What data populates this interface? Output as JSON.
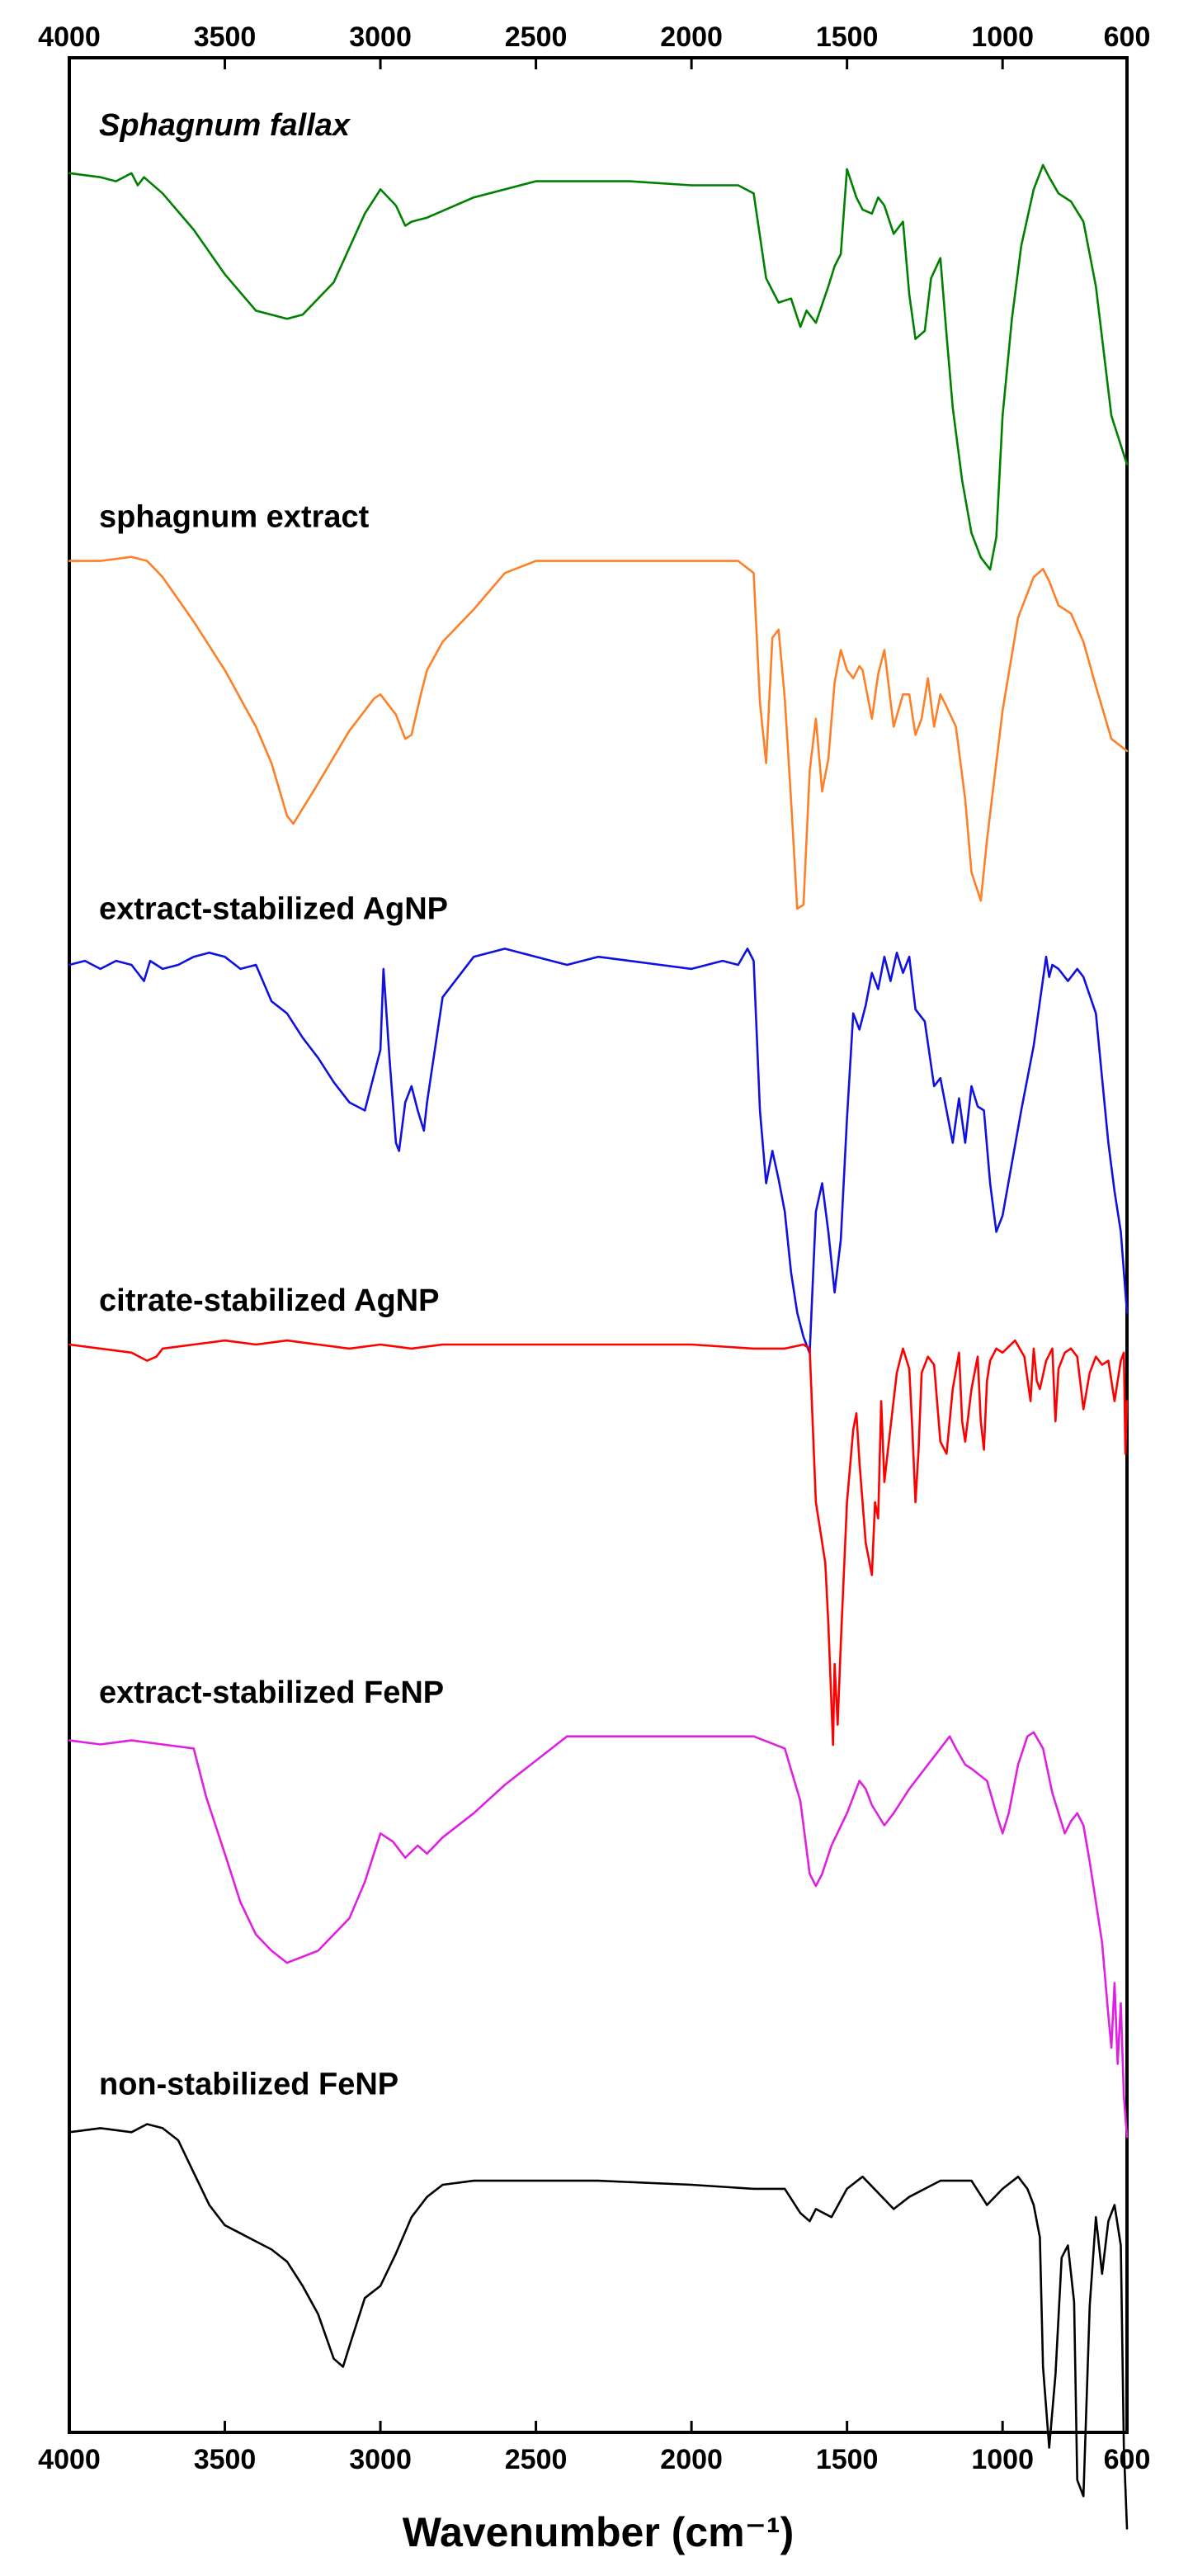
{
  "chart_data": {
    "type": "line",
    "title": "",
    "xlabel": "Wavenumber (cm⁻¹)",
    "ylabel": "",
    "xlim": [
      4000,
      600
    ],
    "x_reversed": true,
    "x_ticks": [
      4000,
      3500,
      3000,
      2500,
      2000,
      1500,
      1000,
      600
    ],
    "x_tick_labels": [
      "4000",
      "3500",
      "3000",
      "2500",
      "2000",
      "1500",
      "1000",
      "600"
    ],
    "ticks_on_top_and_bottom": true,
    "y_axis_ticks": false,
    "grid": false,
    "legend": "none (series labelled inline above each trace)",
    "series_layout": "vertically offset stacked spectra",
    "ylim": [
      -1,
      0
    ],
    "series": [
      {
        "name": "Sphagnum fallax",
        "italic": true,
        "color": "#008000",
        "offset": 0,
        "x": [
          4000,
          3900,
          3850,
          3800,
          3780,
          3760,
          3700,
          3600,
          3500,
          3400,
          3300,
          3250,
          3150,
          3050,
          3000,
          2950,
          2920,
          2900,
          2850,
          2700,
          2500,
          2200,
          2000,
          1850,
          1800,
          1760,
          1720,
          1680,
          1650,
          1630,
          1600,
          1560,
          1540,
          1520,
          1500,
          1470,
          1450,
          1420,
          1400,
          1380,
          1350,
          1320,
          1300,
          1280,
          1250,
          1230,
          1200,
          1180,
          1160,
          1130,
          1100,
          1070,
          1040,
          1020,
          1000,
          970,
          940,
          900,
          870,
          850,
          820,
          780,
          740,
          700,
          650,
          600
        ],
        "y": [
          0.98,
          0.97,
          0.96,
          0.98,
          0.95,
          0.97,
          0.93,
          0.84,
          0.73,
          0.64,
          0.62,
          0.63,
          0.71,
          0.88,
          0.94,
          0.9,
          0.85,
          0.86,
          0.87,
          0.92,
          0.96,
          0.96,
          0.95,
          0.95,
          0.93,
          0.72,
          0.66,
          0.67,
          0.6,
          0.64,
          0.61,
          0.7,
          0.75,
          0.78,
          0.99,
          0.92,
          0.89,
          0.88,
          0.92,
          0.9,
          0.83,
          0.86,
          0.68,
          0.57,
          0.59,
          0.72,
          0.77,
          0.58,
          0.4,
          0.22,
          0.09,
          0.03,
          0.0,
          0.08,
          0.38,
          0.62,
          0.8,
          0.94,
          1.0,
          0.97,
          0.93,
          0.91,
          0.86,
          0.7,
          0.38,
          0.26
        ]
      },
      {
        "name": "sphagnum extract",
        "italic": false,
        "color": "#ff7f27",
        "offset": 0.165,
        "x": [
          4000,
          3900,
          3800,
          3750,
          3700,
          3600,
          3500,
          3400,
          3350,
          3300,
          3280,
          3200,
          3100,
          3020,
          3000,
          2950,
          2920,
          2900,
          2870,
          2850,
          2800,
          2700,
          2600,
          2500,
          2200,
          2000,
          1850,
          1800,
          1780,
          1760,
          1740,
          1720,
          1700,
          1680,
          1660,
          1640,
          1620,
          1600,
          1580,
          1560,
          1540,
          1520,
          1500,
          1480,
          1460,
          1450,
          1420,
          1400,
          1380,
          1350,
          1320,
          1300,
          1280,
          1260,
          1240,
          1220,
          1200,
          1180,
          1150,
          1120,
          1100,
          1070,
          1050,
          1000,
          950,
          900,
          870,
          850,
          820,
          780,
          740,
          700,
          650,
          600
        ],
        "y": [
          0.99,
          0.99,
          1.0,
          0.99,
          0.95,
          0.84,
          0.72,
          0.58,
          0.49,
          0.36,
          0.34,
          0.44,
          0.57,
          0.65,
          0.66,
          0.61,
          0.55,
          0.56,
          0.66,
          0.72,
          0.79,
          0.87,
          0.96,
          0.99,
          0.99,
          0.99,
          0.99,
          0.96,
          0.64,
          0.49,
          0.8,
          0.82,
          0.65,
          0.4,
          0.13,
          0.14,
          0.47,
          0.6,
          0.42,
          0.5,
          0.69,
          0.77,
          0.72,
          0.7,
          0.73,
          0.72,
          0.6,
          0.71,
          0.77,
          0.58,
          0.66,
          0.66,
          0.56,
          0.6,
          0.7,
          0.58,
          0.66,
          0.63,
          0.58,
          0.4,
          0.22,
          0.15,
          0.3,
          0.62,
          0.85,
          0.95,
          0.97,
          0.94,
          0.88,
          0.86,
          0.79,
          0.68,
          0.55,
          0.52
        ]
      },
      {
        "name": "extract-stabilized AgNP",
        "italic": false,
        "color": "#1010e0",
        "offset": 0.33,
        "x": [
          4000,
          3950,
          3900,
          3850,
          3800,
          3760,
          3740,
          3700,
          3650,
          3600,
          3550,
          3500,
          3450,
          3400,
          3350,
          3300,
          3250,
          3200,
          3150,
          3100,
          3050,
          3000,
          2990,
          2970,
          2950,
          2940,
          2920,
          2900,
          2880,
          2860,
          2850,
          2800,
          2700,
          2600,
          2500,
          2400,
          2300,
          2200,
          2100,
          2000,
          1900,
          1850,
          1820,
          1800,
          1780,
          1760,
          1740,
          1720,
          1700,
          1680,
          1660,
          1640,
          1620,
          1600,
          1580,
          1560,
          1540,
          1520,
          1500,
          1480,
          1460,
          1440,
          1420,
          1400,
          1380,
          1360,
          1340,
          1320,
          1300,
          1280,
          1250,
          1220,
          1200,
          1180,
          1160,
          1140,
          1120,
          1100,
          1080,
          1060,
          1040,
          1020,
          1000,
          970,
          940,
          900,
          860,
          850,
          840,
          820,
          790,
          760,
          740,
          700,
          680,
          660,
          640,
          620,
          600
        ],
        "y": [
          0.96,
          0.97,
          0.95,
          0.97,
          0.96,
          0.92,
          0.97,
          0.95,
          0.96,
          0.98,
          0.99,
          0.98,
          0.95,
          0.96,
          0.87,
          0.84,
          0.78,
          0.73,
          0.67,
          0.62,
          0.6,
          0.75,
          0.95,
          0.72,
          0.52,
          0.5,
          0.62,
          0.66,
          0.6,
          0.55,
          0.62,
          0.88,
          0.98,
          1.0,
          0.98,
          0.96,
          0.98,
          0.97,
          0.96,
          0.95,
          0.97,
          0.96,
          1.0,
          0.97,
          0.6,
          0.42,
          0.5,
          0.43,
          0.35,
          0.2,
          0.1,
          0.04,
          0.0,
          0.35,
          0.42,
          0.3,
          0.15,
          0.28,
          0.58,
          0.84,
          0.8,
          0.86,
          0.94,
          0.9,
          0.98,
          0.92,
          0.99,
          0.94,
          0.98,
          0.85,
          0.82,
          0.66,
          0.68,
          0.6,
          0.52,
          0.63,
          0.52,
          0.66,
          0.61,
          0.6,
          0.42,
          0.3,
          0.34,
          0.47,
          0.6,
          0.76,
          0.98,
          0.93,
          0.96,
          0.95,
          0.92,
          0.95,
          0.93,
          0.84,
          0.68,
          0.52,
          0.4,
          0.3,
          0.1
        ]
      },
      {
        "name": "citrate-stabilized AgNP",
        "italic": false,
        "color": "#ff0000",
        "offset": 0.495,
        "x": [
          4000,
          3900,
          3800,
          3750,
          3720,
          3700,
          3600,
          3500,
          3400,
          3300,
          3200,
          3100,
          3000,
          2900,
          2800,
          2600,
          2400,
          2200,
          2000,
          1800,
          1700,
          1640,
          1620,
          1600,
          1580,
          1570,
          1560,
          1550,
          1545,
          1540,
          1530,
          1520,
          1500,
          1480,
          1470,
          1460,
          1440,
          1420,
          1410,
          1400,
          1390,
          1380,
          1370,
          1340,
          1320,
          1300,
          1290,
          1280,
          1270,
          1260,
          1240,
          1220,
          1200,
          1180,
          1160,
          1140,
          1130,
          1120,
          1100,
          1080,
          1070,
          1060,
          1050,
          1040,
          1020,
          1000,
          960,
          930,
          910,
          900,
          890,
          880,
          860,
          840,
          830,
          820,
          800,
          780,
          760,
          740,
          720,
          700,
          680,
          660,
          640,
          620,
          610,
          605,
          600
        ],
        "y": [
          0.99,
          0.98,
          0.97,
          0.95,
          0.96,
          0.98,
          0.99,
          1.0,
          0.99,
          1.0,
          0.99,
          0.98,
          0.99,
          0.98,
          0.99,
          0.99,
          0.99,
          0.99,
          0.99,
          0.98,
          0.98,
          0.99,
          0.98,
          0.6,
          0.5,
          0.45,
          0.3,
          0.1,
          0.0,
          0.2,
          0.05,
          0.25,
          0.6,
          0.78,
          0.82,
          0.7,
          0.5,
          0.42,
          0.6,
          0.56,
          0.85,
          0.65,
          0.72,
          0.92,
          0.98,
          0.93,
          0.78,
          0.6,
          0.73,
          0.92,
          0.96,
          0.94,
          0.75,
          0.72,
          0.88,
          0.97,
          0.8,
          0.75,
          0.88,
          0.96,
          0.8,
          0.73,
          0.9,
          0.95,
          0.98,
          0.97,
          1.0,
          0.96,
          0.85,
          0.98,
          0.9,
          0.88,
          0.95,
          0.98,
          0.8,
          0.93,
          0.97,
          0.98,
          0.96,
          0.83,
          0.92,
          0.96,
          0.94,
          0.95,
          0.85,
          0.95,
          0.97,
          0.72,
          0.85
        ]
      },
      {
        "name": "extract-stabilized FeNP",
        "italic": false,
        "color": "#e020e0",
        "offset": 0.66,
        "x": [
          4000,
          3900,
          3800,
          3700,
          3600,
          3560,
          3500,
          3450,
          3400,
          3350,
          3300,
          3200,
          3100,
          3050,
          3000,
          2960,
          2920,
          2880,
          2850,
          2800,
          2700,
          2600,
          2500,
          2400,
          2300,
          2200,
          2000,
          1800,
          1700,
          1650,
          1620,
          1600,
          1580,
          1550,
          1500,
          1460,
          1440,
          1420,
          1380,
          1350,
          1300,
          1250,
          1200,
          1170,
          1150,
          1120,
          1100,
          1050,
          1020,
          1000,
          980,
          950,
          920,
          900,
          870,
          840,
          800,
          780,
          760,
          740,
          720,
          700,
          680,
          660,
          650,
          640,
          630,
          620,
          610,
          600
        ],
        "y": [
          0.98,
          0.97,
          0.98,
          0.97,
          0.96,
          0.84,
          0.7,
          0.58,
          0.5,
          0.46,
          0.43,
          0.46,
          0.54,
          0.63,
          0.75,
          0.73,
          0.69,
          0.72,
          0.7,
          0.74,
          0.8,
          0.87,
          0.93,
          0.99,
          0.99,
          0.99,
          0.99,
          0.99,
          0.96,
          0.83,
          0.65,
          0.62,
          0.65,
          0.72,
          0.8,
          0.88,
          0.86,
          0.82,
          0.77,
          0.8,
          0.86,
          0.91,
          0.96,
          0.99,
          0.96,
          0.92,
          0.91,
          0.88,
          0.8,
          0.75,
          0.8,
          0.92,
          0.99,
          1.0,
          0.96,
          0.85,
          0.75,
          0.78,
          0.8,
          0.77,
          0.68,
          0.58,
          0.48,
          0.3,
          0.22,
          0.38,
          0.18,
          0.33,
          0.1,
          0.0
        ]
      },
      {
        "name": "non-stabilized FeNP",
        "italic": false,
        "color": "#000000",
        "offset": 0.825,
        "x": [
          4000,
          3900,
          3800,
          3750,
          3700,
          3650,
          3600,
          3550,
          3500,
          3450,
          3400,
          3350,
          3300,
          3250,
          3200,
          3150,
          3120,
          3100,
          3050,
          3000,
          2950,
          2900,
          2850,
          2800,
          2700,
          2500,
          2300,
          2000,
          1800,
          1700,
          1650,
          1620,
          1600,
          1550,
          1500,
          1450,
          1400,
          1350,
          1300,
          1250,
          1200,
          1100,
          1050,
          1000,
          950,
          920,
          900,
          880,
          870,
          850,
          830,
          810,
          790,
          770,
          760,
          740,
          720,
          700,
          680,
          660,
          640,
          620,
          610,
          600
        ],
        "y": [
          0.98,
          0.99,
          0.98,
          1.0,
          0.99,
          0.96,
          0.88,
          0.8,
          0.75,
          0.73,
          0.71,
          0.69,
          0.66,
          0.6,
          0.53,
          0.42,
          0.4,
          0.45,
          0.57,
          0.6,
          0.68,
          0.77,
          0.82,
          0.85,
          0.86,
          0.86,
          0.86,
          0.85,
          0.84,
          0.84,
          0.78,
          0.76,
          0.79,
          0.77,
          0.84,
          0.87,
          0.83,
          0.79,
          0.82,
          0.84,
          0.86,
          0.86,
          0.8,
          0.84,
          0.87,
          0.84,
          0.8,
          0.72,
          0.4,
          0.2,
          0.38,
          0.67,
          0.7,
          0.56,
          0.12,
          0.08,
          0.55,
          0.77,
          0.63,
          0.76,
          0.8,
          0.7,
          0.2,
          0.0
        ]
      }
    ]
  }
}
